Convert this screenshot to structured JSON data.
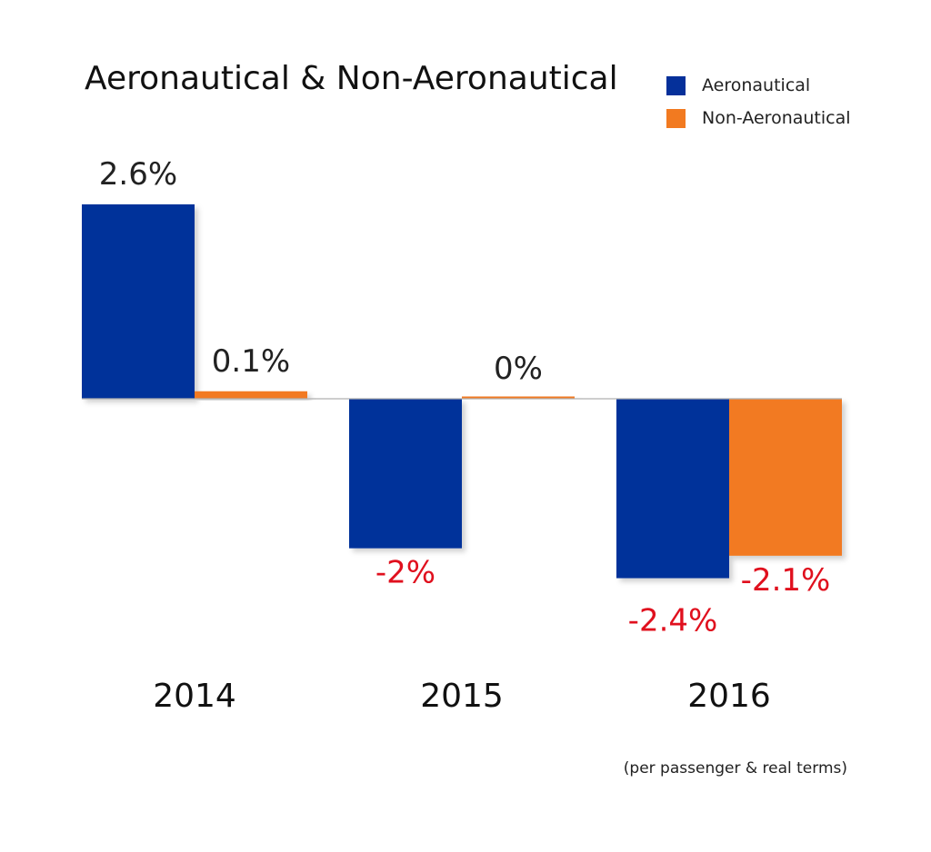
{
  "chart_data": {
    "type": "bar",
    "title": "Aeronautical & Non-Aeronautical",
    "categories": [
      "2014",
      "2015",
      "2016"
    ],
    "series": [
      {
        "name": "Aeronautical",
        "color": "#05309a",
        "values": [
          2.6,
          -2,
          -2.4
        ],
        "labels": [
          "2.6%",
          "-2%",
          "-2.4%"
        ]
      },
      {
        "name": "Non-Aeronautical",
        "color": "#f27a20",
        "values": [
          0.1,
          0,
          -2.1
        ],
        "labels": [
          "0.1%",
          "0%",
          "-2.1%"
        ]
      }
    ],
    "ylim": [
      -2.6,
      2.8
    ],
    "grid": false,
    "legend_position": "top-right",
    "negative_label_color": "#e0101e",
    "positive_label_color": "#222222",
    "baseline_color": "#b0b0b0"
  },
  "footnote": "(per passenger & real terms)"
}
